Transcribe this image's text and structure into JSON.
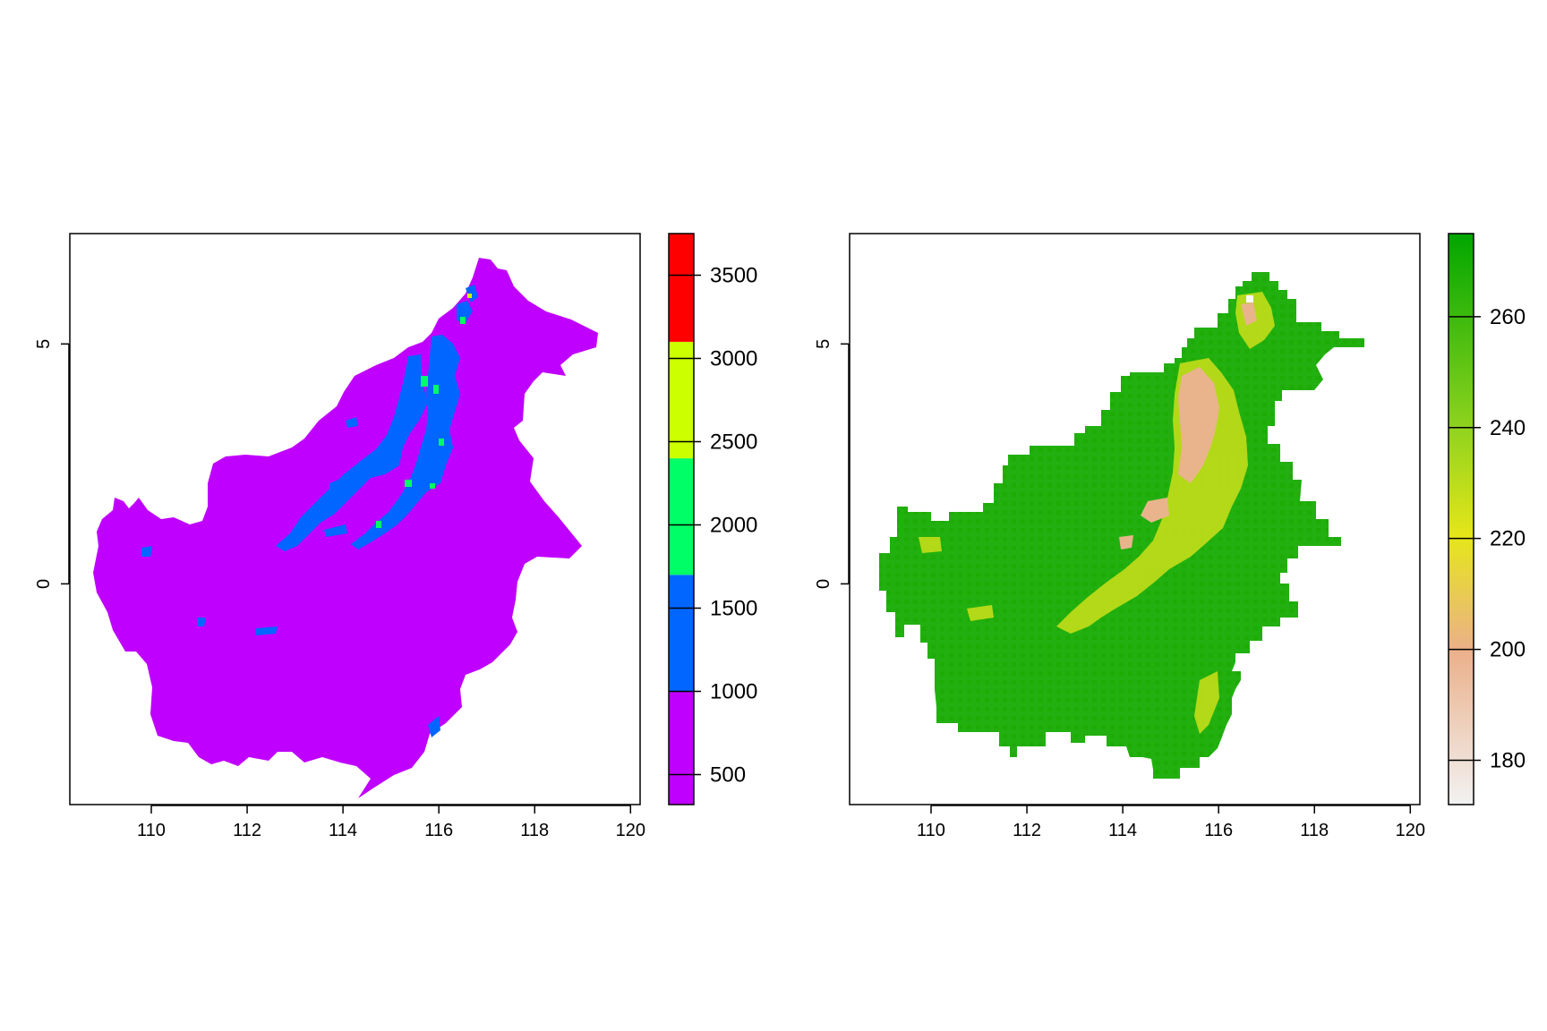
{
  "chart_data": [
    {
      "type": "heatmap",
      "title": "",
      "xlabel": "",
      "ylabel": "",
      "x_ticks": [
        "110",
        "112",
        "114",
        "116",
        "118",
        "120"
      ],
      "y_ticks": [
        "5",
        "0"
      ],
      "xlim": [
        108.3,
        120.2
      ],
      "ylim": [
        -4.6,
        7.3
      ],
      "legend": {
        "position": "right",
        "type": "classes",
        "ticks": [
          "500",
          "1000",
          "1500",
          "2000",
          "2500",
          "3000",
          "3500"
        ],
        "range": [
          320,
          3750
        ],
        "breaks": [
          1000,
          1700,
          2400,
          3100
        ],
        "colors": [
          "#c000ff",
          "#0066ff",
          "#00ff66",
          "#ccff00",
          "#ff0000"
        ]
      }
    },
    {
      "type": "heatmap",
      "title": "",
      "xlabel": "",
      "ylabel": "",
      "x_ticks": [
        "110",
        "112",
        "114",
        "116",
        "118",
        "120"
      ],
      "y_ticks": [
        "5",
        "0"
      ],
      "xlim": [
        108.3,
        120.2
      ],
      "ylim": [
        -4.6,
        7.3
      ],
      "legend": {
        "position": "right",
        "type": "continuous",
        "ticks": [
          "180",
          "200",
          "220",
          "240",
          "260"
        ],
        "range": [
          172,
          275
        ],
        "colors": [
          "#f2f2f2",
          "#ebb08a",
          "#e6e619",
          "#8fd31e",
          "#00a600"
        ]
      }
    }
  ]
}
